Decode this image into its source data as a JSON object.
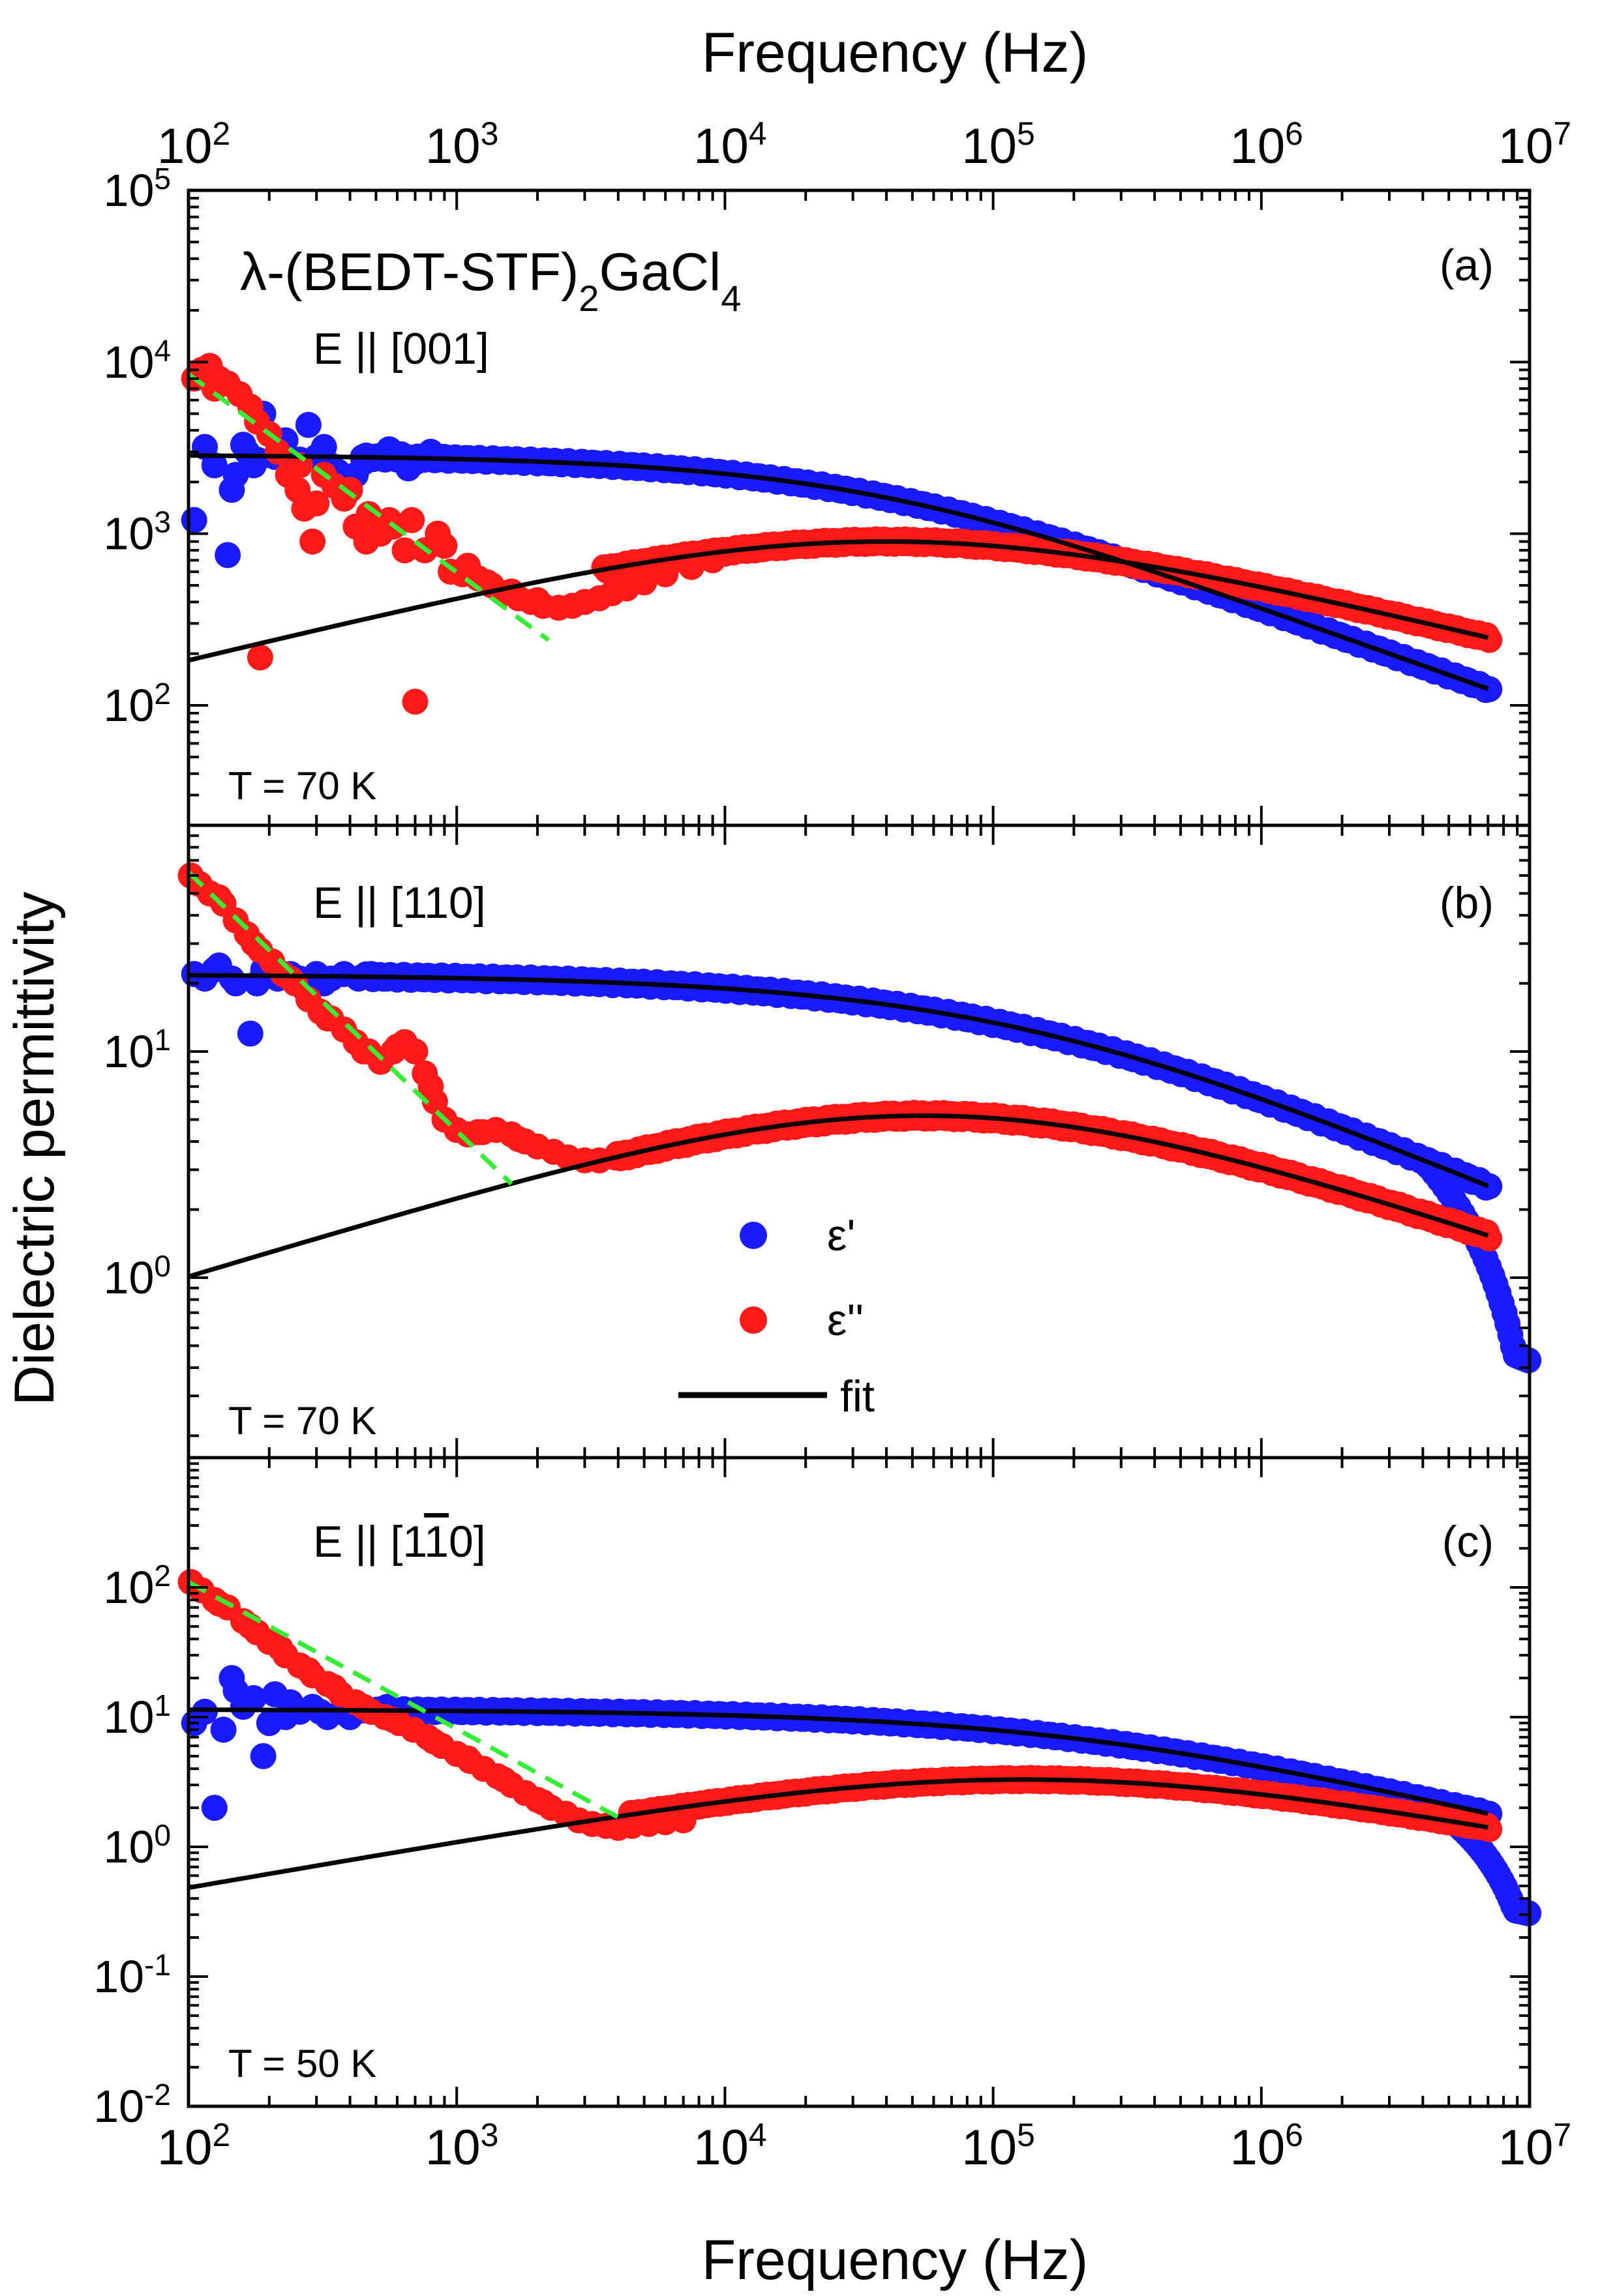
{
  "figure": {
    "top_axis_label": "Frequency (Hz)",
    "bottom_axis_label": "Frequency (Hz)",
    "y_axis_label": "Dielectric permittivity",
    "compound": {
      "prefix": "λ-(BEDT-STF)",
      "sub1": "2",
      "mid": "GaCl",
      "sub2": "4"
    },
    "legend": {
      "eps_real": "ε'",
      "eps_imag": "ε''",
      "fit": "fit"
    },
    "colors": {
      "eps_real": "#1a1aff",
      "eps_imag": "#ff1a1a",
      "fit": "#000000",
      "power_law": "#33ee33"
    }
  },
  "chart_data": [
    {
      "panel": "(a)",
      "type": "scatter",
      "field_base": "E || [001]",
      "field_sub": "",
      "temperature": "T = 70 K",
      "xscale": "log",
      "yscale": "log",
      "xlim": [
        100,
        10000000
      ],
      "ylim": [
        20,
        100000
      ],
      "x_ticks": [
        {
          "exp": "2",
          "v": 100
        },
        {
          "exp": "3",
          "v": 1000
        },
        {
          "exp": "4",
          "v": 10000
        },
        {
          "exp": "5",
          "v": 100000
        },
        {
          "exp": "6",
          "v": 1000000
        },
        {
          "exp": "7",
          "v": 10000000
        }
      ],
      "y_ticks": [
        {
          "exp": "2",
          "v": 100
        },
        {
          "exp": "3",
          "v": 1000
        },
        {
          "exp": "4",
          "v": 10000
        },
        {
          "exp": "5",
          "v": 100000
        }
      ],
      "fit_real": {
        "eps_s": 2900,
        "tau": 3.2e-06,
        "alpha": 0.42,
        "beta": 0.95,
        "mode": "real"
      },
      "fit_imag": {
        "amp": 900,
        "fpeak": 40000,
        "m": 0.38,
        "n": 0.38,
        "mode": "imag"
      },
      "power_law": {
        "x": [
          100,
          2200
        ],
        "y": [
          8500,
          240
        ]
      },
      "scatter_real": [
        [
          105,
          1200
        ],
        [
          115,
          3200
        ],
        [
          125,
          2500
        ],
        [
          140,
          750
        ],
        [
          150,
          2200
        ],
        [
          165,
          3000
        ],
        [
          175,
          2500
        ],
        [
          190,
          5000
        ],
        [
          210,
          2800
        ],
        [
          230,
          3500
        ],
        [
          260,
          2700
        ],
        [
          280,
          4300
        ],
        [
          300,
          2800
        ],
        [
          340,
          2500
        ],
        [
          380,
          2000
        ],
        [
          420,
          2200
        ],
        [
          480,
          2800
        ],
        [
          540,
          2700
        ],
        [
          620,
          2900
        ],
        [
          700,
          2600
        ],
        [
          800,
          3000
        ],
        [
          900,
          2800
        ]
      ],
      "scatter_imag_low": [
        [
          105,
          8000
        ],
        [
          112,
          9000
        ],
        [
          120,
          9500
        ],
        [
          130,
          8000
        ],
        [
          140,
          7500
        ],
        [
          155,
          6500
        ],
        [
          170,
          5500
        ],
        [
          185,
          190
        ],
        [
          200,
          3800
        ],
        [
          215,
          3000
        ],
        [
          235,
          2200
        ],
        [
          255,
          1800
        ],
        [
          270,
          1400
        ],
        [
          290,
          900
        ],
        [
          320,
          2200
        ],
        [
          350,
          1900
        ],
        [
          380,
          1600
        ],
        [
          420,
          1100
        ],
        [
          470,
          1300
        ],
        [
          520,
          1000
        ],
        [
          580,
          1100
        ],
        [
          640,
          800
        ],
        [
          700,
          105
        ],
        [
          760,
          800
        ],
        [
          850,
          1000
        ],
        [
          950,
          600
        ],
        [
          1050,
          580
        ],
        [
          1200,
          550
        ],
        [
          1350,
          500
        ],
        [
          1500,
          450
        ],
        [
          1700,
          420
        ],
        [
          1900,
          400
        ],
        [
          2100,
          380
        ],
        [
          2400,
          370
        ],
        [
          2700,
          380
        ],
        [
          3000,
          400
        ],
        [
          3400,
          420
        ],
        [
          3800,
          450
        ],
        [
          4300,
          480
        ],
        [
          5000,
          520
        ],
        [
          6000,
          580
        ],
        [
          7500,
          640
        ],
        [
          9000,
          700
        ]
      ],
      "scatter_real_noise": [
        [
          145,
          1800
        ],
        [
          160,
          3300
        ],
        [
          180,
          2700
        ],
        [
          240,
          2400
        ],
        [
          320,
          3200
        ],
        [
          360,
          2300
        ],
        [
          450,
          2600
        ],
        [
          560,
          3100
        ],
        [
          660,
          2400
        ],
        [
          850,
          2700
        ]
      ],
      "scatter_imag_noise": [
        [
          125,
          7000
        ],
        [
          180,
          4500
        ],
        [
          260,
          2500
        ],
        [
          300,
          1500
        ],
        [
          400,
          1800
        ],
        [
          460,
          900
        ],
        [
          560,
          1200
        ],
        [
          680,
          1200
        ],
        [
          900,
          850
        ],
        [
          1100,
          650
        ],
        [
          1300,
          520
        ],
        [
          1600,
          460
        ],
        [
          2000,
          410
        ]
      ]
    },
    {
      "panel": "(b)",
      "type": "scatter",
      "field_base": "E || [110]",
      "field_sub": "",
      "temperature": "T = 70 K",
      "xscale": "log",
      "yscale": "log",
      "xlim": [
        100,
        10000000
      ],
      "ylim": [
        0.16,
        100
      ],
      "x_ticks": [],
      "y_ticks": [
        {
          "exp": "0",
          "v": 1
        },
        {
          "exp": "1",
          "v": 10
        }
      ],
      "fit_real": {
        "eps_s": 22,
        "tau": 9.5e-07,
        "alpha": 0.47,
        "beta": 0.92,
        "mode": "real"
      },
      "fit_imag": {
        "amp": 5.2,
        "fpeak": 55000,
        "m": 0.36,
        "n": 0.4,
        "mode": "imag"
      },
      "power_law": {
        "x": [
          100,
          1600
        ],
        "y": [
          62,
          2.6
        ]
      },
      "scatter_real": [
        [
          105,
          22
        ],
        [
          115,
          21
        ],
        [
          130,
          24
        ],
        [
          150,
          20
        ],
        [
          170,
          12
        ],
        [
          190,
          23
        ],
        [
          215,
          21
        ],
        [
          240,
          22
        ],
        [
          270,
          19
        ],
        [
          300,
          22
        ],
        [
          340,
          21
        ],
        [
          380,
          22
        ],
        [
          430,
          21
        ],
        [
          480,
          22
        ]
      ],
      "scatter_imag_low": [
        [
          102,
          60
        ],
        [
          110,
          55
        ],
        [
          120,
          50
        ],
        [
          135,
          45
        ],
        [
          150,
          38
        ],
        [
          165,
          33
        ],
        [
          185,
          28
        ],
        [
          205,
          25
        ],
        [
          225,
          22
        ],
        [
          250,
          20
        ],
        [
          280,
          17
        ],
        [
          310,
          15
        ],
        [
          340,
          14
        ],
        [
          380,
          12.5
        ],
        [
          420,
          11
        ],
        [
          470,
          10
        ],
        [
          520,
          9
        ],
        [
          580,
          10
        ],
        [
          640,
          11
        ],
        [
          700,
          10
        ],
        [
          760,
          8
        ],
        [
          830,
          6
        ],
        [
          900,
          5
        ],
        [
          1000,
          4.5
        ],
        [
          1100,
          4.3
        ],
        [
          1250,
          4.4
        ],
        [
          1400,
          4.5
        ],
        [
          1600,
          4.3
        ],
        [
          1800,
          4.0
        ],
        [
          2000,
          3.8
        ],
        [
          2300,
          3.6
        ],
        [
          2600,
          3.4
        ],
        [
          3000,
          3.3
        ],
        [
          3400,
          3.3
        ],
        [
          3900,
          3.4
        ],
        [
          4500,
          3.5
        ]
      ],
      "scatter_real_noise": [
        [
          125,
          23
        ],
        [
          145,
          21
        ],
        [
          180,
          20
        ],
        [
          260,
          21
        ],
        [
          320,
          20
        ]
      ],
      "scatter_imag_noise": [
        [
          130,
          48
        ],
        [
          175,
          30
        ],
        [
          240,
          21
        ],
        [
          330,
          14
        ],
        [
          450,
          10
        ],
        [
          600,
          10.5
        ],
        [
          800,
          7
        ],
        [
          1200,
          4.4
        ],
        [
          1700,
          4.1
        ]
      ]
    },
    {
      "panel": "(c)",
      "type": "scatter",
      "field_base": "E || [1",
      "field_bar": "1",
      "field_tail": "0]",
      "temperature": "T = 50 K",
      "xscale": "log",
      "yscale": "log",
      "xlim": [
        100,
        10000000
      ],
      "ylim": [
        0.01,
        1000
      ],
      "x_ticks": [
        {
          "exp": "2",
          "v": 100
        },
        {
          "exp": "3",
          "v": 1000
        },
        {
          "exp": "4",
          "v": 10000
        },
        {
          "exp": "5",
          "v": 100000
        },
        {
          "exp": "6",
          "v": 1000000
        },
        {
          "exp": "7",
          "v": 10000000
        }
      ],
      "y_ticks": [
        {
          "exp": "-2",
          "v": 0.01
        },
        {
          "exp": "-1",
          "v": 0.1
        },
        {
          "exp": "0",
          "v": 1
        },
        {
          "exp": "1",
          "v": 10
        },
        {
          "exp": "2",
          "v": 100
        }
      ],
      "fit_real": {
        "eps_s": 11.5,
        "tau": 5.5e-07,
        "alpha": 0.47,
        "beta": 0.9,
        "mode": "real"
      },
      "fit_imag": {
        "amp": 3.3,
        "fpeak": 130000,
        "m": 0.36,
        "n": 0.38,
        "mode": "imag"
      },
      "power_law": {
        "x": [
          100,
          4200
        ],
        "y": [
          110,
          1.6
        ]
      },
      "scatter_real": [
        [
          105,
          9
        ],
        [
          115,
          11
        ],
        [
          125,
          2
        ],
        [
          135,
          8
        ],
        [
          145,
          20
        ],
        [
          160,
          12
        ],
        [
          175,
          14
        ],
        [
          190,
          5
        ],
        [
          210,
          15
        ],
        [
          230,
          10
        ],
        [
          260,
          11
        ],
        [
          290,
          12
        ],
        [
          330,
          10
        ],
        [
          370,
          11
        ],
        [
          420,
          12
        ],
        [
          480,
          11
        ],
        [
          550,
          12
        ],
        [
          630,
          11
        ]
      ],
      "scatter_imag_low": [
        [
          102,
          110
        ],
        [
          112,
          95
        ],
        [
          125,
          80
        ],
        [
          140,
          70
        ],
        [
          160,
          55
        ],
        [
          180,
          45
        ],
        [
          200,
          38
        ],
        [
          230,
          30
        ],
        [
          260,
          25
        ],
        [
          290,
          21
        ],
        [
          330,
          18
        ],
        [
          370,
          15
        ],
        [
          420,
          13
        ],
        [
          480,
          11
        ],
        [
          540,
          10
        ],
        [
          610,
          9
        ],
        [
          690,
          8
        ],
        [
          780,
          7
        ],
        [
          880,
          6
        ],
        [
          1000,
          5.2
        ],
        [
          1120,
          4.6
        ],
        [
          1260,
          4.0
        ],
        [
          1420,
          3.5
        ],
        [
          1600,
          3.0
        ],
        [
          1800,
          2.6
        ],
        [
          2000,
          2.3
        ],
        [
          2250,
          2.0
        ],
        [
          2550,
          1.8
        ],
        [
          2850,
          1.6
        ],
        [
          3200,
          1.5
        ],
        [
          3600,
          1.45
        ],
        [
          4000,
          1.4
        ],
        [
          4500,
          1.45
        ],
        [
          5200,
          1.5
        ],
        [
          6000,
          1.55
        ],
        [
          7000,
          1.6
        ]
      ],
      "scatter_real_noise": [
        [
          150,
          16
        ],
        [
          200,
          9
        ],
        [
          240,
          13
        ],
        [
          310,
          11
        ],
        [
          400,
          10
        ]
      ],
      "scatter_imag_noise": [
        [
          130,
          75
        ],
        [
          170,
          50
        ],
        [
          220,
          34
        ],
        [
          280,
          23
        ],
        [
          350,
          17
        ],
        [
          450,
          12
        ],
        [
          580,
          9.5
        ],
        [
          820,
          6.5
        ],
        [
          1100,
          4.8
        ],
        [
          1500,
          3.3
        ],
        [
          2100,
          2.2
        ]
      ]
    }
  ]
}
